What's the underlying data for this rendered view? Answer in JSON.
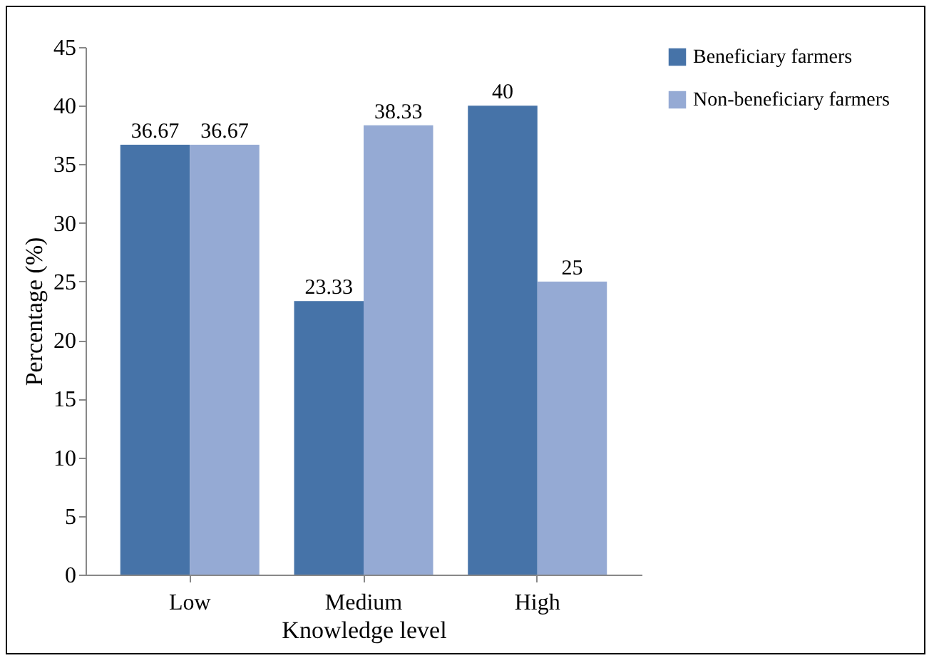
{
  "chart_data": {
    "type": "bar",
    "xlabel": "Knowledge level",
    "ylabel": "Percentage (%)",
    "categories": [
      "Low",
      "Medium",
      "High"
    ],
    "series": [
      {
        "name": "Beneficiary farmers",
        "color": "#4673a8",
        "values": [
          36.67,
          23.33,
          40
        ]
      },
      {
        "name": "Non-beneficiary farmers",
        "color": "#95aad4",
        "values": [
          36.67,
          38.33,
          25
        ]
      }
    ],
    "ylim": [
      0,
      45
    ],
    "yticks": [
      0,
      5,
      10,
      15,
      20,
      25,
      30,
      35,
      40,
      45
    ],
    "grid": false,
    "legend": "right",
    "data_labels": true
  }
}
